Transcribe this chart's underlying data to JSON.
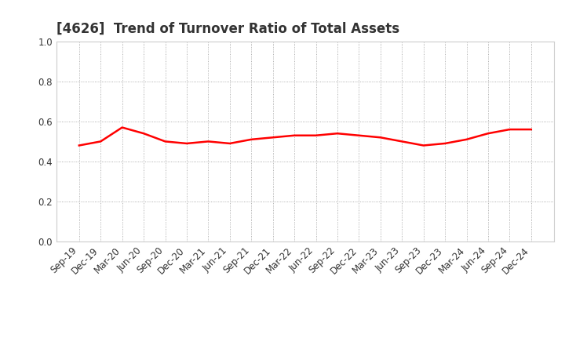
{
  "title": "[4626]  Trend of Turnover Ratio of Total Assets",
  "labels": [
    "Sep-19",
    "Dec-19",
    "Mar-20",
    "Jun-20",
    "Sep-20",
    "Dec-20",
    "Mar-21",
    "Jun-21",
    "Sep-21",
    "Dec-21",
    "Mar-22",
    "Jun-22",
    "Sep-22",
    "Dec-22",
    "Mar-23",
    "Jun-23",
    "Sep-23",
    "Dec-23",
    "Mar-24",
    "Jun-24",
    "Sep-24",
    "Dec-24"
  ],
  "values": [
    0.48,
    0.5,
    0.57,
    0.54,
    0.5,
    0.49,
    0.5,
    0.49,
    0.51,
    0.52,
    0.53,
    0.53,
    0.54,
    0.53,
    0.52,
    0.5,
    0.48,
    0.49,
    0.51,
    0.54,
    0.56,
    0.56
  ],
  "line_color": "#FF0000",
  "line_width": 1.8,
  "ylim": [
    0.0,
    1.0
  ],
  "yticks": [
    0.0,
    0.2,
    0.4,
    0.6,
    0.8,
    1.0
  ],
  "grid_color": "#999999",
  "background_color": "#ffffff",
  "title_fontsize": 12,
  "title_color": "#333333",
  "tick_fontsize": 8.5,
  "tick_color": "#333333"
}
